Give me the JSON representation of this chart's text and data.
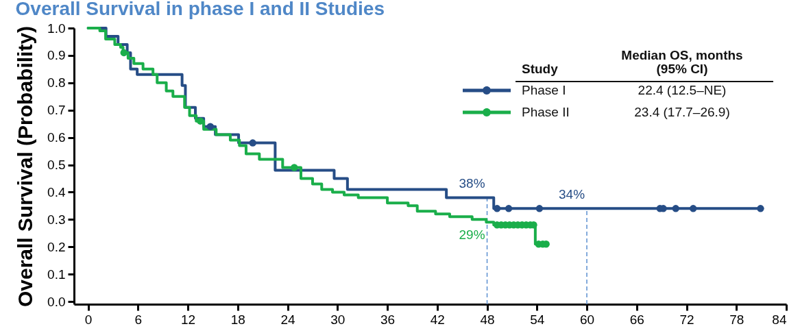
{
  "chart_data": {
    "type": "step",
    "title": "Overall Survival in phase I and II Studies",
    "ylabel": "Overall Survival (Probability)",
    "legend_title": "Study",
    "annotations": [
      "Median OS, months",
      "(95% CI)",
      "22.4 (12.5–NE)",
      "23.4 (17.7–26.9)"
    ],
    "xlim": [
      -1.7,
      84
    ],
    "xticks": [
      0,
      6,
      12,
      18,
      24,
      30,
      36,
      42,
      48,
      54,
      60,
      66,
      72,
      78,
      84
    ],
    "ylim": [
      -0.01,
      1.0
    ],
    "yticks": [
      {
        "value": 0,
        "label": "0.0"
      },
      0.1,
      0.2,
      0.3,
      0.4,
      0.5,
      0.6,
      0.7,
      0.8,
      0.9,
      {
        "value": 1,
        "label": "1.0"
      }
    ],
    "grid": false,
    "legend": "top right",
    "ref_lines": [
      {
        "axis": "x",
        "value": 48,
        "color": "#5b8fd0",
        "line_style": "dashed"
      },
      {
        "axis": "x",
        "value": 60,
        "color": "#5b8fd0",
        "line_style": "dashed"
      }
    ],
    "series": [
      {
        "name": "Phase I",
        "color": "#264d86",
        "x": [
          0,
          2.15,
          3.6,
          4.7,
          5.1,
          5.9,
          11.3,
          11.7,
          12.9,
          13.9,
          15.3,
          18.1,
          22.5,
          29.6,
          31.2,
          43.1,
          48,
          48.8,
          60,
          80.9
        ],
        "values": [
          1.0,
          0.97,
          0.94,
          0.91,
          0.85,
          0.83,
          0.79,
          0.71,
          0.67,
          0.64,
          0.61,
          0.58,
          0.48,
          0.45,
          0.41,
          0.38,
          0.38,
          0.34,
          0.34,
          0.34
        ],
        "value_labels": [
          null,
          null,
          null,
          null,
          null,
          null,
          null,
          null,
          null,
          null,
          null,
          null,
          null,
          null,
          null,
          null,
          "38%",
          null,
          "34%",
          null
        ]
      },
      {
        "name": "Phase II",
        "color": "#1aae4a",
        "x": [
          0,
          1.4,
          2.1,
          3.2,
          3.9,
          4.2,
          4.8,
          5.5,
          6.6,
          7.8,
          8.3,
          9.4,
          10.2,
          11.6,
          12.2,
          13.0,
          13.9,
          15.4,
          17.1,
          18.2,
          19.0,
          20.6,
          23.4,
          25.6,
          27.0,
          28.1,
          29.4,
          30.8,
          32.5,
          36.0,
          38.5,
          39.6,
          41.8,
          43.5,
          46.2,
          47.9,
          48,
          48.8,
          53.8,
          55.1
        ],
        "values": [
          1.0,
          0.99,
          0.96,
          0.94,
          0.93,
          0.91,
          0.89,
          0.87,
          0.85,
          0.83,
          0.8,
          0.77,
          0.75,
          0.71,
          0.68,
          0.66,
          0.63,
          0.61,
          0.59,
          0.57,
          0.54,
          0.52,
          0.49,
          0.45,
          0.43,
          0.41,
          0.4,
          0.39,
          0.38,
          0.36,
          0.35,
          0.33,
          0.32,
          0.31,
          0.3,
          0.29,
          0.29,
          0.28,
          0.21,
          0.21
        ],
        "value_labels": [
          null,
          null,
          null,
          null,
          null,
          null,
          null,
          null,
          null,
          null,
          null,
          null,
          null,
          null,
          null,
          null,
          null,
          null,
          null,
          null,
          null,
          null,
          null,
          null,
          null,
          null,
          null,
          null,
          null,
          null,
          null,
          null,
          null,
          null,
          null,
          null,
          "29%",
          null,
          null,
          null
        ]
      },
      {
        "type": "scatter",
        "color": "#264d86",
        "marker": "circle",
        "x": [
          14.7,
          19.8,
          49.2,
          50.6,
          54.3,
          68.8,
          69.2,
          70.7,
          72.8,
          80.9
        ],
        "values": [
          0.64,
          0.58,
          0.34,
          0.34,
          0.34,
          0.34,
          0.34,
          0.34,
          0.34,
          0.34
        ]
      },
      {
        "type": "scatter",
        "color": "#1aae4a",
        "marker": "circle",
        "x": [
          4.3,
          13.5,
          24.8,
          49.2,
          49.7,
          50.2,
          50.7,
          51.2,
          51.7,
          52.2,
          52.7,
          53.2,
          53.6,
          54.2,
          54.7,
          55.1
        ],
        "values": [
          0.91,
          0.66,
          0.49,
          0.28,
          0.28,
          0.28,
          0.28,
          0.28,
          0.28,
          0.28,
          0.28,
          0.28,
          0.28,
          0.21,
          0.21,
          0.21
        ]
      }
    ]
  }
}
